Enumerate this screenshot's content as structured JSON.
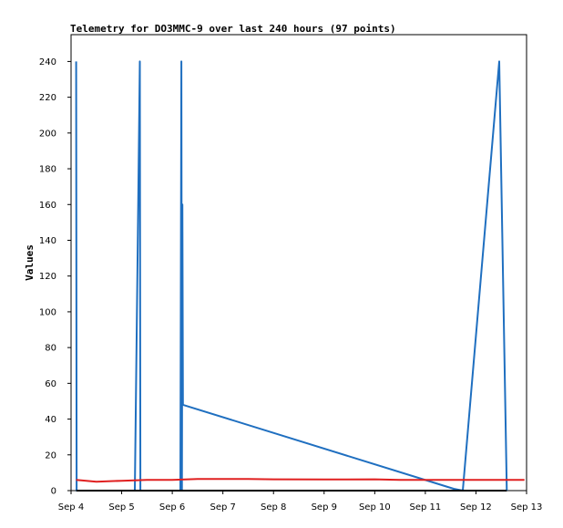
{
  "chart_data": {
    "type": "line",
    "title": "Telemetry for DO3MMC-9 over last 240 hours (97 points)",
    "xlabel": "",
    "ylabel": "Values",
    "x_ticks": [
      "Sep 4",
      "Sep 5",
      "Sep 6",
      "Sep 7",
      "Sep 8",
      "Sep 9",
      "Sep 10",
      "Sep 11",
      "Sep 12",
      "Sep 13"
    ],
    "y_ticks": [
      "0",
      "20",
      "40",
      "60",
      "80",
      "100",
      "120",
      "140",
      "160",
      "180",
      "200",
      "220",
      "240"
    ],
    "xlim": [
      "Sep 4 00:00",
      "Sep 13 00:00"
    ],
    "ylim": [
      0,
      255
    ],
    "grid": false,
    "series": [
      {
        "color": "#1f6fc0",
        "points": [
          [
            "Sep 4 02:24",
            240
          ],
          [
            "Sep 4 02:38",
            0
          ],
          [
            "Sep 5 06:14",
            0
          ],
          [
            "Sep 5 07:55",
            168
          ],
          [
            "Sep 5 08:38",
            240
          ],
          [
            "Sep 5 08:52",
            0
          ],
          [
            "Sep 6 03:50",
            0
          ],
          [
            "Sep 6 04:19",
            240
          ],
          [
            "Sep 6 04:34",
            0
          ],
          [
            "Sep 6 04:48",
            160
          ],
          [
            "Sep 6 05:02",
            48
          ],
          [
            "Sep 11 13:26",
            1
          ],
          [
            "Sep 11 17:46",
            0
          ],
          [
            "Sep 12 11:02",
            240
          ],
          [
            "Sep 12 14:38",
            0
          ]
        ]
      },
      {
        "color": "#e02020",
        "points": [
          [
            "Sep 4 02:24",
            6
          ],
          [
            "Sep 4 12:00",
            5
          ],
          [
            "Sep 5 00:00",
            5.5
          ],
          [
            "Sep 5 12:00",
            6
          ],
          [
            "Sep 6 00:00",
            6
          ],
          [
            "Sep 6 12:00",
            6.5
          ],
          [
            "Sep 7 12:00",
            6.5
          ],
          [
            "Sep 8 00:00",
            6.3
          ],
          [
            "Sep 9 00:00",
            6.2
          ],
          [
            "Sep 10 00:00",
            6.3
          ],
          [
            "Sep 10 12:00",
            6
          ],
          [
            "Sep 11 12:00",
            6
          ],
          [
            "Sep 12 12:00",
            6
          ],
          [
            "Sep 12 23:00",
            6
          ]
        ]
      },
      {
        "color": "#000000",
        "points": [
          [
            "Sep 4 02:24",
            0
          ],
          [
            "Sep 12 14:38",
            0
          ]
        ]
      }
    ]
  }
}
